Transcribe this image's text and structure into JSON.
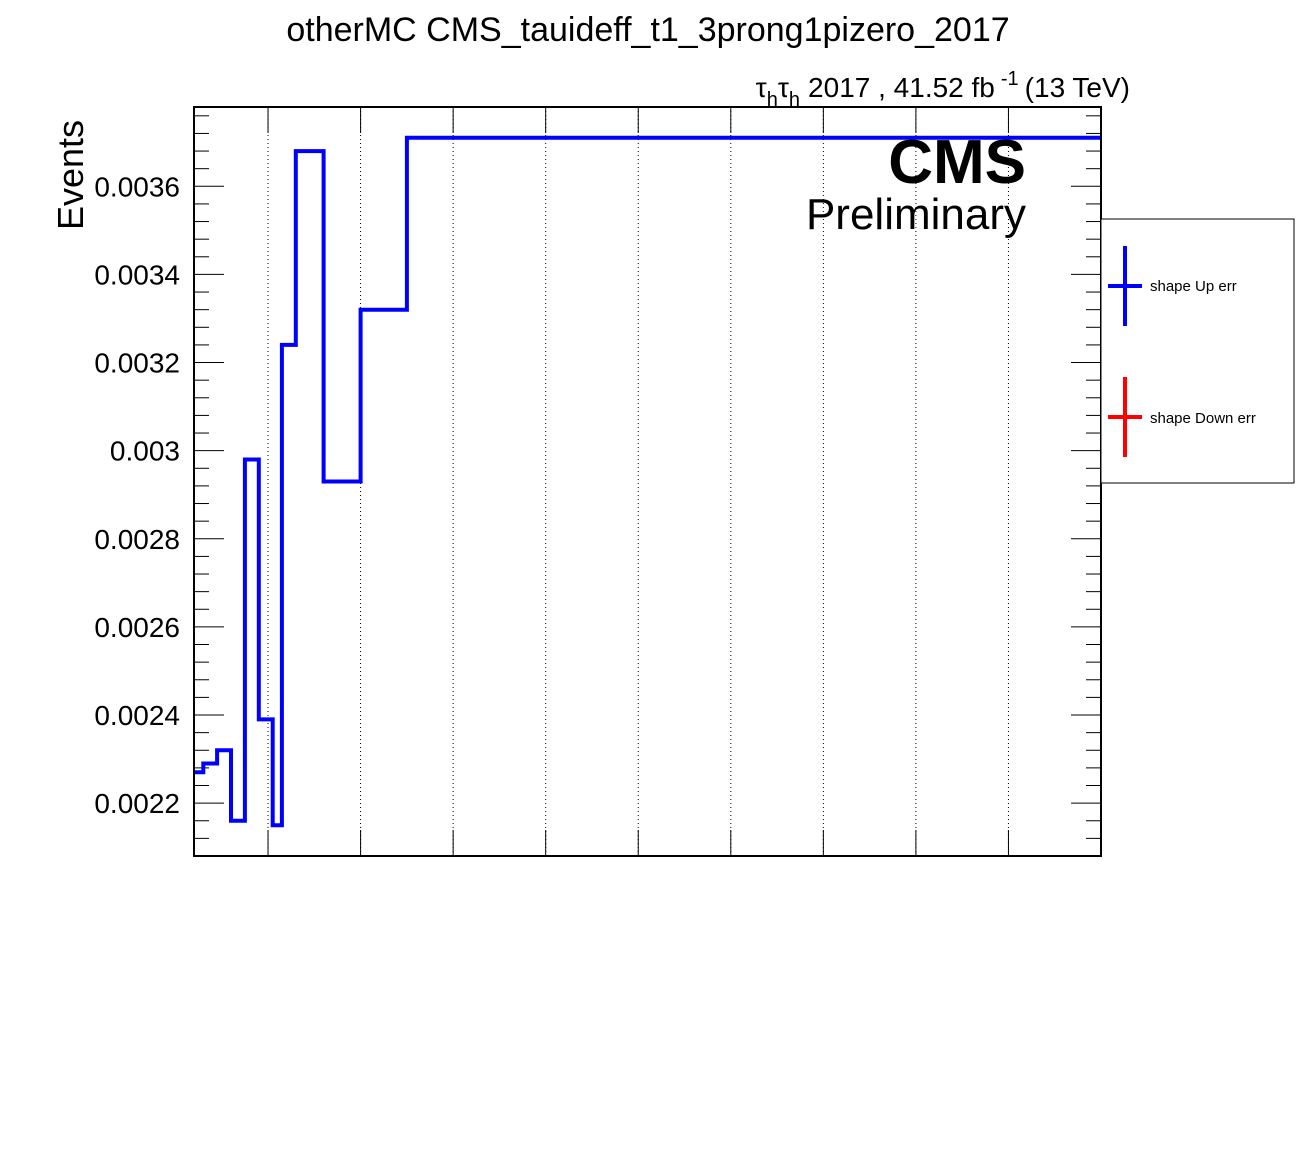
{
  "chart_data": {
    "type": "line",
    "title": "otherMC CMS_tauideff_t1_3prong1pizero_2017",
    "lumi": {
      "tau": "τ",
      "sub": "h",
      "text": "2017 , 41.52 fb",
      "sup": "-1",
      "energy": "(13 TeV)"
    },
    "cms_label": "CMS",
    "preliminary_label": "Preliminary",
    "ylabel": "Events",
    "ylim": [
      0.00208,
      0.00378
    ],
    "yticks": [
      {
        "value": 0.0022,
        "label": "0.0022"
      },
      {
        "value": 0.0024,
        "label": "0.0024"
      },
      {
        "value": 0.0026,
        "label": "0.0026"
      },
      {
        "value": 0.0028,
        "label": "0.0028"
      },
      {
        "value": 0.003,
        "label": "0.003"
      },
      {
        "value": 0.0032,
        "label": "0.0032"
      },
      {
        "value": 0.0034,
        "label": "0.0034"
      },
      {
        "value": 0.0036,
        "label": "0.0036"
      }
    ],
    "xlim": [
      0,
      9.8
    ],
    "vertical_gridlines_at": [
      0.8,
      1.8,
      2.8,
      3.8,
      4.8,
      5.8,
      6.8,
      7.8,
      8.8
    ],
    "series": [
      {
        "name": "shape Up err",
        "color": "#0000ff",
        "bins": [
          {
            "x0": 0.0,
            "x1": 0.1,
            "y": 0.00227
          },
          {
            "x0": 0.1,
            "x1": 0.25,
            "y": 0.00229
          },
          {
            "x0": 0.25,
            "x1": 0.4,
            "y": 0.00232
          },
          {
            "x0": 0.4,
            "x1": 0.55,
            "y": 0.00216
          },
          {
            "x0": 0.55,
            "x1": 0.7,
            "y": 0.00298
          },
          {
            "x0": 0.7,
            "x1": 0.85,
            "y": 0.00239
          },
          {
            "x0": 0.85,
            "x1": 0.95,
            "y": 0.00215
          },
          {
            "x0": 0.95,
            "x1": 1.1,
            "y": 0.00324
          },
          {
            "x0": 1.1,
            "x1": 1.4,
            "y": 0.00368
          },
          {
            "x0": 1.4,
            "x1": 1.8,
            "y": 0.00293
          },
          {
            "x0": 1.8,
            "x1": 2.3,
            "y": 0.00332
          },
          {
            "x0": 2.3,
            "x1": 9.8,
            "y": 0.00371
          }
        ]
      }
    ],
    "legend": [
      {
        "label": "shape Up err",
        "color": "#0000ff"
      },
      {
        "label": "shape Down err",
        "color": "#ff0000"
      }
    ]
  }
}
